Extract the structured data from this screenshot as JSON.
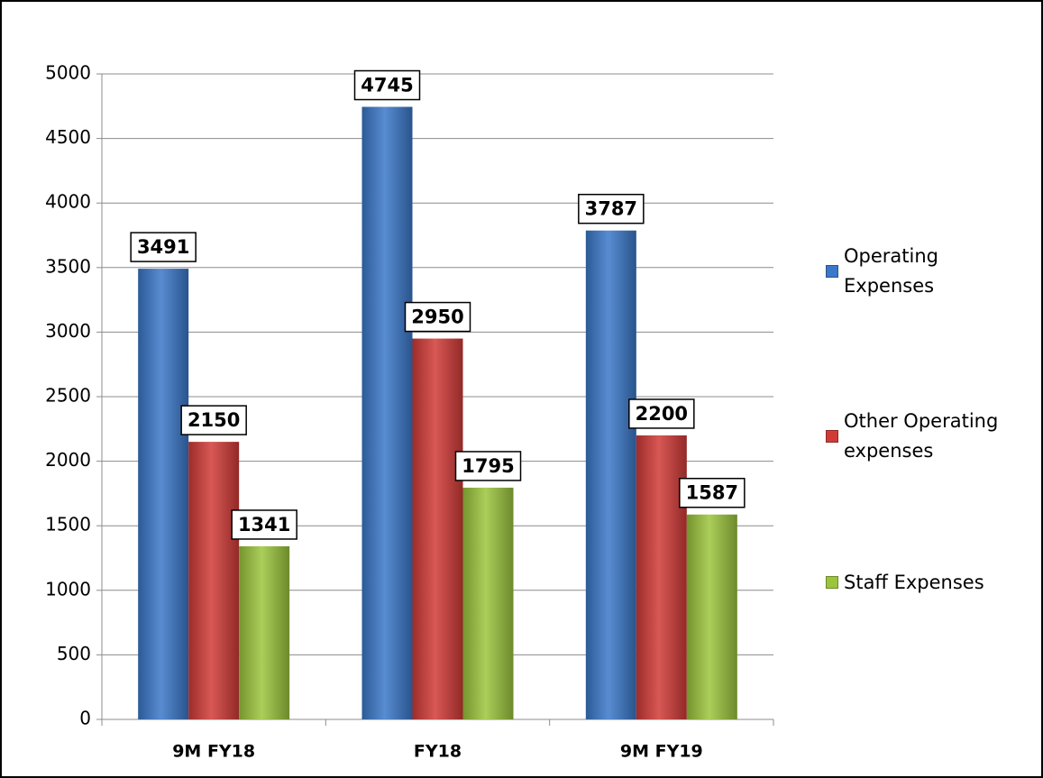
{
  "chart_data": {
    "type": "bar",
    "categories": [
      "9M FY18",
      "FY18",
      "9M FY19"
    ],
    "series": [
      {
        "name": "Operating Expenses",
        "color": "#3b78c9",
        "values": [
          3491,
          4745,
          3787
        ]
      },
      {
        "name": "Other Operating expenses",
        "color": "#d13b37",
        "values": [
          2150,
          2950,
          2200
        ]
      },
      {
        "name": "Staff Expenses",
        "color": "#9cc53d",
        "values": [
          1341,
          1795,
          1587
        ]
      }
    ],
    "ylim": [
      0,
      5000
    ],
    "yticks": [
      0,
      500,
      1000,
      1500,
      2000,
      2500,
      3000,
      3500,
      4000,
      4500,
      5000
    ],
    "grid": true,
    "legend": "right"
  }
}
